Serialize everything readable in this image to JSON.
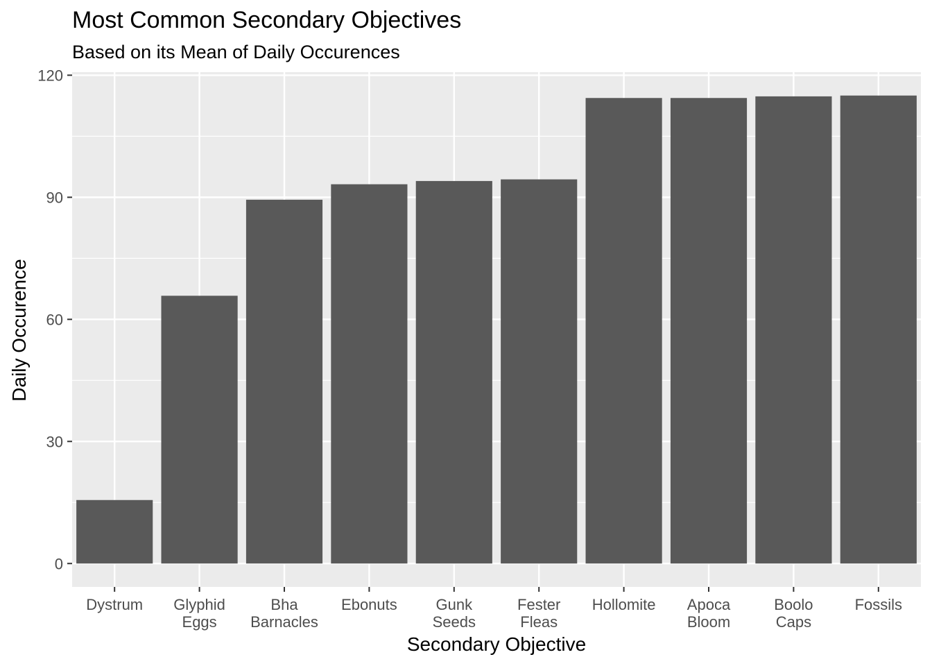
{
  "chart_data": {
    "type": "bar",
    "title": "Most Common Secondary Objectives",
    "subtitle": "Based on its Mean of Daily Occurences",
    "xlabel": "Secondary Objective",
    "ylabel": "Daily Occurence",
    "categories": [
      [
        "Dystrum"
      ],
      [
        "Glyphid",
        "Eggs"
      ],
      [
        "Bha",
        "Barnacles"
      ],
      [
        "Ebonuts"
      ],
      [
        "Gunk",
        "Seeds"
      ],
      [
        "Fester",
        "Fleas"
      ],
      [
        "Hollomite"
      ],
      [
        "Apoca",
        "Bloom"
      ],
      [
        "Boolo",
        "Caps"
      ],
      [
        "Fossils"
      ]
    ],
    "values": [
      15.6,
      65.8,
      89.4,
      93.2,
      94.0,
      94.4,
      114.4,
      114.4,
      114.8,
      115.0
    ],
    "ylim": [
      -5.75,
      120.75
    ],
    "yticks": [
      0,
      30,
      60,
      90,
      120
    ],
    "grid": true,
    "colors": {
      "bar": "#595959",
      "panel": "#ebebeb",
      "grid": "#ffffff",
      "tick": "#333333"
    }
  }
}
